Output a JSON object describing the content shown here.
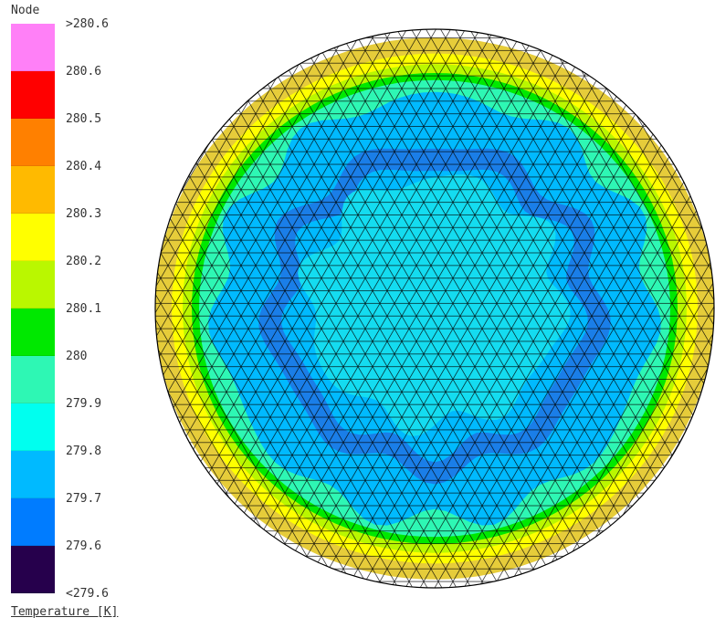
{
  "legend": {
    "header": "Node",
    "footer": "Temperature [K]",
    "colors": [
      "#ff80f7",
      "#ff0000",
      "#ff8000",
      "#ffba00",
      "#ffff00",
      "#baf700",
      "#00e800",
      "#2ef7b4",
      "#00ffef",
      "#00baff",
      "#007cff",
      "#26004c"
    ],
    "labels": [
      ">280.6",
      "280.6",
      "280.5",
      "280.4",
      "280.3",
      "280.2",
      "280.1",
      "280",
      "279.9",
      "279.8",
      "279.7",
      "279.6",
      "<279.6"
    ]
  },
  "plot": {
    "bands": [
      {
        "color": "#e6cc3a",
        "level": "280.3"
      },
      {
        "color": "#ffff00",
        "level": "280.2"
      },
      {
        "color": "#baf700",
        "level": "280.1"
      },
      {
        "color": "#00e800",
        "level": "280"
      },
      {
        "color": "#2ef7b4",
        "level": "279.9"
      },
      {
        "color": "#00baff",
        "level": "279.7"
      },
      {
        "color": "#1a7ee8",
        "level": "279.6"
      },
      {
        "color": "#00baff",
        "level": "279.7"
      },
      {
        "color": "#14dcf0",
        "level": "279.8"
      }
    ],
    "mesh_color": "#000000"
  }
}
